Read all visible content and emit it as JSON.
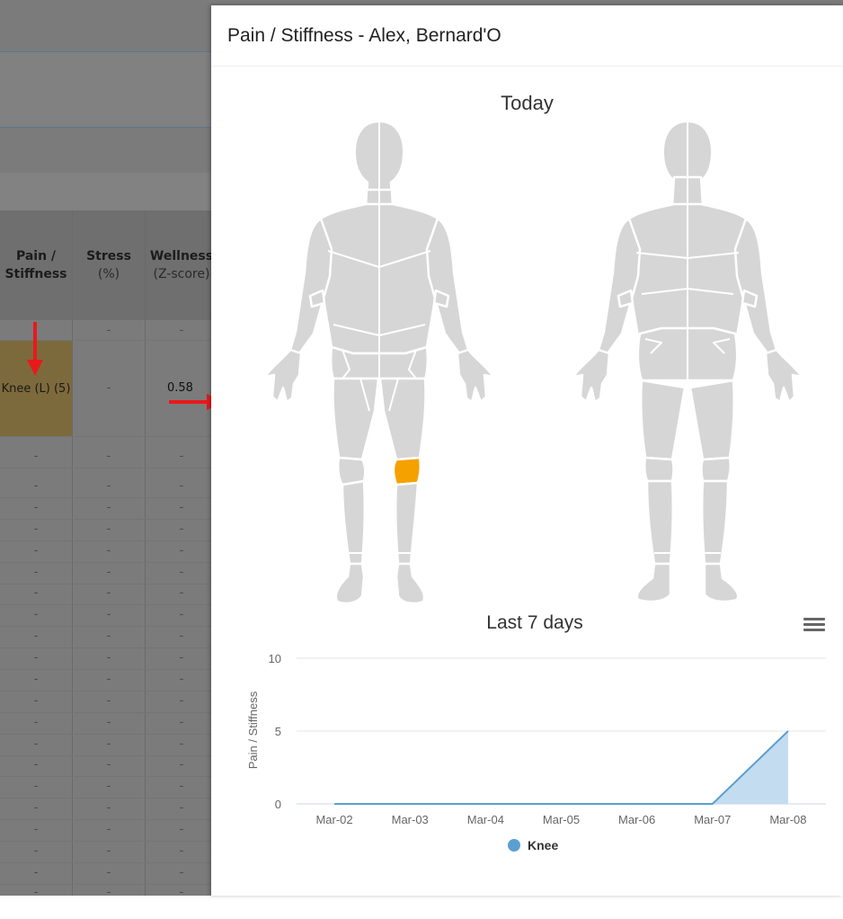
{
  "table": {
    "headers": [
      {
        "title": "Pain /",
        "title2": "Stiffness",
        "sub": ""
      },
      {
        "title": "Stress",
        "title2": "",
        "sub": "(%)"
      },
      {
        "title": "Wellness",
        "title2": "",
        "sub": "(Z-score)"
      }
    ],
    "first_row": [
      "",
      "-",
      "-"
    ],
    "highlight_row": {
      "pain": "Knee (L) (5)",
      "stress": "-",
      "wellness": "0.58"
    },
    "empty_cell": "-"
  },
  "modal": {
    "title": "Pain / Stiffness - Alex, Bernard'O",
    "today_title": "Today",
    "highlighted_region": "left-knee",
    "highlight_color": "#f5a100",
    "body_color": "#d6d6d6"
  },
  "menu_icon": "hamburger-menu-icon",
  "chart_data": {
    "type": "area",
    "title": "Last 7 days",
    "xlabel": "",
    "ylabel": "Pain / Stiffness",
    "categories": [
      "Mar-02",
      "Mar-03",
      "Mar-04",
      "Mar-05",
      "Mar-06",
      "Mar-07",
      "Mar-08"
    ],
    "series": [
      {
        "name": "Knee",
        "values": [
          0,
          0,
          0,
          0,
          0,
          0,
          5
        ],
        "color": "#5b9fd0",
        "fill": "#c3dcef"
      }
    ],
    "ylim": [
      0,
      10
    ],
    "yticks": [
      0,
      5,
      10
    ],
    "grid": true,
    "legend": "bottom-center"
  }
}
